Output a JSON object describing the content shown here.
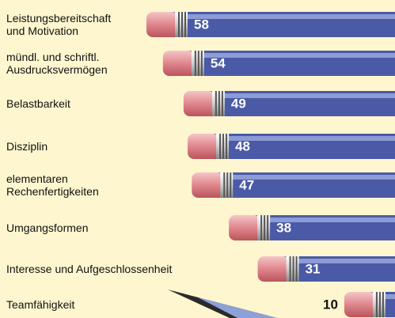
{
  "chart_data": {
    "type": "bar",
    "orientation": "horizontal",
    "categories": [
      "Leistungsbereitschaft\nund Motivation",
      "mündl. und schriftl.\nAusdrucksvermögen",
      "Belastbarkeit",
      "Disziplin",
      "elementaren\nRechenfertigkeiten",
      "Umgangsformen",
      "Interesse und Aufgeschlossenheit",
      "Teamfähigkeit"
    ],
    "values": [
      58,
      54,
      49,
      48,
      47,
      38,
      31,
      10
    ],
    "color": "#4b5aa6"
  }
}
